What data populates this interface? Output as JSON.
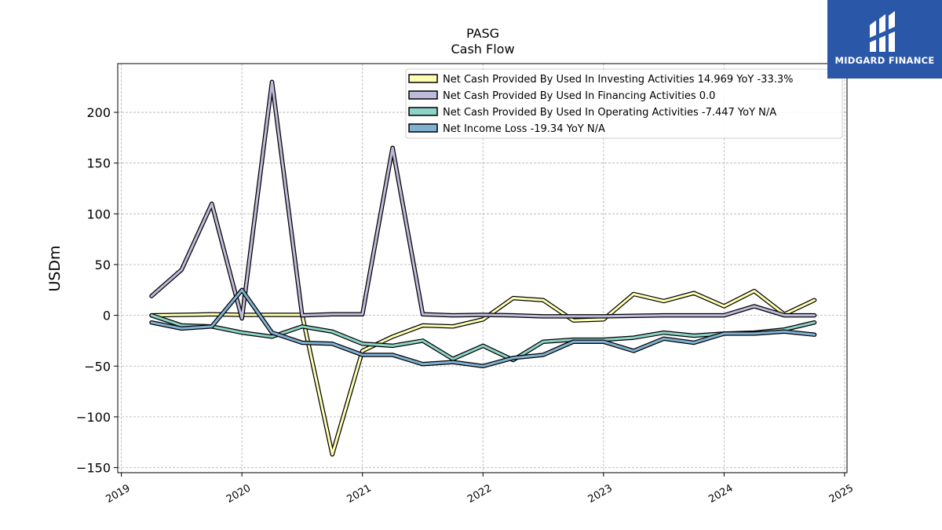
{
  "watermark": {
    "text": "MIDGARD FINANCE",
    "bg_color": "#2b57a8"
  },
  "chart_data": {
    "type": "line",
    "title": "PASG",
    "subtitle": "Cash Flow",
    "ylabel": "USDm",
    "xlabel": "",
    "ylim": [
      -155,
      248
    ],
    "xlim": [
      2018.97,
      2025.02
    ],
    "yticks": [
      -150,
      -100,
      -50,
      0,
      50,
      100,
      150,
      200
    ],
    "xticks": [
      "2019",
      "2020",
      "2021",
      "2022",
      "2023",
      "2024",
      "2025"
    ],
    "grid": true,
    "legend_position": "top-right",
    "x": [
      2019.25,
      2019.5,
      2019.75,
      2020.0,
      2020.25,
      2020.5,
      2020.75,
      2021.0,
      2021.25,
      2021.5,
      2021.75,
      2022.0,
      2022.25,
      2022.5,
      2022.75,
      2023.0,
      2023.25,
      2023.5,
      2023.75,
      2024.0,
      2024.25,
      2024.5,
      2024.75
    ],
    "series": [
      {
        "name": "Net Cash Provided By Used In Investing Activities  14.969 YoY -33.3%",
        "color": "#ffffb3",
        "values": [
          0,
          0.5,
          1,
          0.5,
          0.5,
          0.5,
          -137,
          -35,
          -21,
          -10,
          -11,
          -4,
          17,
          15,
          -5,
          -4,
          21,
          14,
          22,
          9,
          24,
          1,
          15
        ]
      },
      {
        "name": "Net Cash Provided By Used In Financing Activities  0.0",
        "color": "#bebada",
        "values": [
          19,
          45,
          110,
          -3,
          230,
          0,
          1,
          1,
          165,
          1,
          0,
          0.5,
          0,
          -1,
          -1,
          -1,
          -0.5,
          0,
          0,
          0,
          9,
          0,
          0
        ]
      },
      {
        "name": "Net Cash Provided By Used In Operating Activities  -7.447 YoY N/A",
        "color": "#8dd3c7",
        "values": [
          0,
          -10,
          -11,
          -17,
          -21,
          -11,
          -16,
          -28,
          -30,
          -25,
          -43,
          -30,
          -44,
          -26,
          -24,
          -24,
          -22,
          -17,
          -20,
          -18,
          -17,
          -14,
          -7
        ]
      },
      {
        "name": "Net Income Loss  -19.34 YoY N/A",
        "color": "#80b1d3",
        "values": [
          -7,
          -13,
          -11,
          25,
          -17,
          -27,
          -28,
          -39,
          -39,
          -48,
          -46,
          -50,
          -42,
          -39,
          -26,
          -26,
          -35,
          -23,
          -27,
          -18,
          -18,
          -16,
          -19
        ]
      }
    ]
  }
}
